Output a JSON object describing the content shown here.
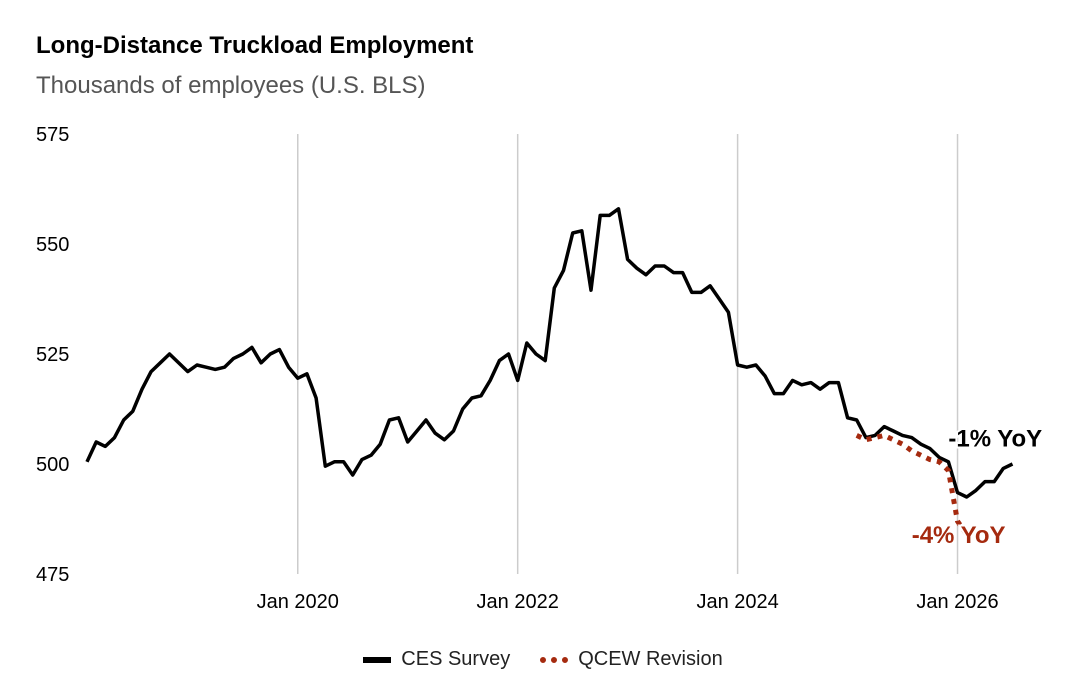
{
  "title": "Long-Distance Truckload Employment",
  "subtitle": "Thousands of employees (U.S. BLS)",
  "chart_data": {
    "type": "line",
    "ylim": [
      475,
      575
    ],
    "y_ticks": [
      475,
      500,
      525,
      550,
      575
    ],
    "x_ticks": [
      "Jan 2020",
      "Jan 2022",
      "Jan 2024",
      "Jan 2026"
    ],
    "grid": "vertical lines at x ticks",
    "legend_position": "bottom-center",
    "colors": {
      "ces": "#000000",
      "qcew": "#a52a0f"
    },
    "series": [
      {
        "name": "CES Survey",
        "style": "solid",
        "x": [
          "2018-02",
          "2018-03",
          "2018-04",
          "2018-05",
          "2018-06",
          "2018-07",
          "2018-08",
          "2018-09",
          "2018-10",
          "2018-11",
          "2018-12",
          "2019-01",
          "2019-02",
          "2019-03",
          "2019-04",
          "2019-05",
          "2019-06",
          "2019-07",
          "2019-08",
          "2019-09",
          "2019-10",
          "2019-11",
          "2019-12",
          "2020-01",
          "2020-02",
          "2020-03",
          "2020-04",
          "2020-05",
          "2020-06",
          "2020-07",
          "2020-08",
          "2020-09",
          "2020-10",
          "2020-11",
          "2020-12",
          "2021-01",
          "2021-02",
          "2021-03",
          "2021-04",
          "2021-05",
          "2021-06",
          "2021-07",
          "2021-08",
          "2021-09",
          "2021-10",
          "2021-11",
          "2021-12",
          "2022-01",
          "2022-02",
          "2022-03",
          "2022-04",
          "2022-05",
          "2022-06",
          "2022-07",
          "2022-08",
          "2022-09",
          "2022-10",
          "2022-11",
          "2022-12",
          "2023-01",
          "2023-02",
          "2023-03",
          "2023-04",
          "2023-05",
          "2023-06",
          "2023-07",
          "2023-08",
          "2023-09",
          "2023-10",
          "2023-11",
          "2023-12",
          "2024-01",
          "2024-02",
          "2024-03",
          "2024-04",
          "2024-05",
          "2024-06",
          "2024-07",
          "2024-08",
          "2024-09",
          "2024-10",
          "2024-11",
          "2024-12",
          "2025-01",
          "2025-02",
          "2025-03",
          "2025-04",
          "2025-05",
          "2025-06",
          "2025-07",
          "2025-08",
          "2025-09",
          "2025-10",
          "2025-11",
          "2025-12",
          "2026-01",
          "2026-02",
          "2026-03",
          "2026-04",
          "2026-05",
          "2026-06",
          "2026-07"
        ],
        "values": [
          500.5,
          505,
          504,
          506,
          510,
          512,
          517,
          521,
          523,
          525,
          523,
          521,
          522.5,
          522,
          521.5,
          522,
          524,
          525,
          526.5,
          523,
          525,
          526,
          522,
          519.5,
          520.5,
          515,
          499.5,
          500.5,
          500.5,
          497.5,
          501,
          502,
          504.5,
          510,
          510.5,
          505,
          507.5,
          510,
          507,
          505.5,
          507.5,
          512.5,
          515,
          515.5,
          519,
          523.5,
          525,
          519,
          527.5,
          525,
          523.5,
          540,
          544,
          552.5,
          553,
          539.5,
          556.5,
          556.5,
          558,
          546.5,
          544.5,
          543,
          545,
          545,
          543.5,
          543.5,
          539,
          539,
          540.5,
          537.5,
          534.5,
          522.5,
          522,
          522.5,
          520,
          516,
          516,
          519,
          518,
          518.5,
          517,
          518.5,
          518.5,
          510.5,
          510,
          506,
          506.5,
          508.5,
          507.5,
          506.5,
          506,
          504.5,
          503.5,
          501.5,
          500.5,
          493.5,
          492.5,
          494,
          496,
          496,
          499,
          500
        ]
      },
      {
        "name": "QCEW Revision",
        "style": "dotted",
        "x": [
          "2025-02",
          "2025-03",
          "2025-04",
          "2025-05",
          "2025-06",
          "2025-07",
          "2025-08",
          "2025-09",
          "2025-10",
          "2025-11",
          "2025-12",
          "2026-01",
          "2026-02"
        ],
        "values": [
          506.5,
          505.5,
          506,
          506.5,
          505.5,
          504.5,
          503,
          502,
          501,
          500.5,
          498.5,
          487,
          484
        ]
      }
    ],
    "annotations": [
      {
        "text": "-1% YoY",
        "x": "2025-12",
        "y": 504,
        "color": "#000000"
      },
      {
        "text": "-4% YoY",
        "x": "2025-08",
        "y": 482,
        "color": "#a52a0f"
      }
    ]
  }
}
